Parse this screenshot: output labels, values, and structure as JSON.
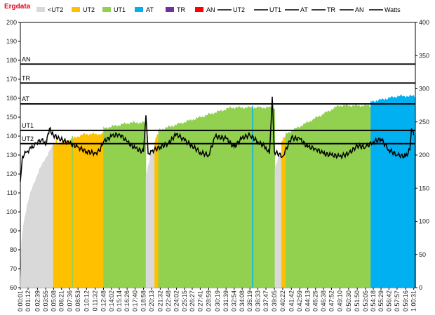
{
  "window": {
    "title": "Ergdata",
    "title_color": "#E8001C"
  },
  "chart_data": {
    "type": "area",
    "title": "Ergdata",
    "legend": {
      "placement": "top",
      "entries": [
        {
          "label": "<UT2",
          "kind": "area",
          "color": "#D9D9D9"
        },
        {
          "label": "UT2",
          "kind": "area",
          "color": "#FFC000"
        },
        {
          "label": "UT1",
          "kind": "area",
          "color": "#92D050"
        },
        {
          "label": "AT",
          "kind": "area",
          "color": "#00B0F0"
        },
        {
          "label": "TR",
          "kind": "area",
          "color": "#7030A0"
        },
        {
          "label": "AN",
          "kind": "area",
          "color": "#FF0000"
        },
        {
          "label": "UT2",
          "kind": "line",
          "color": "#000000"
        },
        {
          "label": "UT1",
          "kind": "line",
          "color": "#000000"
        },
        {
          "label": "AT",
          "kind": "line",
          "color": "#000000"
        },
        {
          "label": "TR",
          "kind": "line",
          "color": "#000000"
        },
        {
          "label": "AN",
          "kind": "line",
          "color": "#000000"
        },
        {
          "label": "Watts",
          "kind": "line",
          "color": "#000000"
        }
      ]
    },
    "y_left": {
      "range": [
        60,
        200
      ],
      "ticks": [
        60,
        70,
        80,
        90,
        100,
        110,
        120,
        130,
        140,
        150,
        160,
        170,
        180,
        190,
        200
      ]
    },
    "y_right": {
      "range": [
        0,
        400
      ],
      "ticks": [
        0,
        50,
        100,
        150,
        200,
        250,
        300,
        350,
        400
      ]
    },
    "grid": false,
    "x_tick_labels": [
      "0:00:01",
      "0:01:12",
      "0:02:39",
      "0:03:55",
      "0:05:08",
      "0:06:21",
      "0:07:36",
      "0:08:53",
      "0:10:12",
      "0:11:32",
      "0:12:48",
      "0:14:02",
      "0:15:14",
      "0:16:26",
      "0:17:40",
      "0:18:58",
      "0:20:13",
      "0:21:32",
      "0:22:48",
      "0:24:02",
      "0:25:15",
      "0:26:27",
      "0:27:41",
      "0:28:59",
      "0:30:19",
      "0:31:39",
      "0:32:54",
      "0:34:08",
      "0:35:19",
      "0:36:33",
      "0:37:47",
      "0:39:05",
      "0:40:22",
      "0:41:42",
      "0:42:59",
      "0:44:13",
      "0:45:25",
      "0:46:38",
      "0:47:52",
      "0:49:10",
      "0:50:30",
      "0:51:50",
      "0:53:05",
      "0:54:18",
      "0:55:29",
      "0:56:42",
      "0:57:57",
      "0:59:16",
      "1:00:31"
    ],
    "zone_lines": [
      {
        "label": "AN",
        "hr": 178
      },
      {
        "label": "TR",
        "hr": 168
      },
      {
        "label": "AT",
        "hr": 157
      },
      {
        "label": "UT1",
        "hr": 143
      },
      {
        "label": "UT2",
        "hr": 136
      }
    ],
    "zone_segments": [
      {
        "zone": "<UT2",
        "start": "0:00:01",
        "end": "0:05:05",
        "hr_start": 60,
        "hr_end": 135
      },
      {
        "zone": "UT2",
        "start": "0:05:05",
        "end": "0:12:48",
        "hr_start": 135,
        "hr_end": 141
      },
      {
        "zone": "UT1",
        "start": "0:12:48",
        "end": "0:19:20",
        "hr_start": 144,
        "hr_end": 147
      },
      {
        "zone": "<UT2",
        "start": "0:19:20",
        "end": "0:20:40",
        "hr_start": 118,
        "hr_end": 132
      },
      {
        "zone": "UT2",
        "start": "0:20:40",
        "end": "0:21:15",
        "hr_start": 136,
        "hr_end": 141
      },
      {
        "zone": "UT1",
        "start": "0:21:15",
        "end": "0:39:10",
        "hr_start": 143,
        "hr_end": 155
      },
      {
        "zone": "<UT2",
        "start": "0:39:10",
        "end": "0:40:10",
        "hr_start": 122,
        "hr_end": 130
      },
      {
        "zone": "UT2",
        "start": "0:40:10",
        "end": "0:40:50",
        "hr_start": 136,
        "hr_end": 140
      },
      {
        "zone": "UT1",
        "start": "0:40:50",
        "end": "0:53:55",
        "hr_start": 141,
        "hr_end": 156
      },
      {
        "zone": "AT",
        "start": "0:53:55",
        "end": "1:00:40",
        "hr_start": 158,
        "hr_end": 161
      }
    ],
    "watts_series": {
      "name": "Watts",
      "axis": "right",
      "points": [
        [
          "0:00:01",
          160
        ],
        [
          "0:00:20",
          198
        ],
        [
          "0:01:00",
          205
        ],
        [
          "0:01:40",
          210
        ],
        [
          "0:02:30",
          218
        ],
        [
          "0:03:20",
          224
        ],
        [
          "0:03:55",
          215
        ],
        [
          "0:04:30",
          240
        ],
        [
          "0:05:05",
          230
        ],
        [
          "0:06:00",
          225
        ],
        [
          "0:07:30",
          218
        ],
        [
          "0:08:53",
          212
        ],
        [
          "0:10:12",
          205
        ],
        [
          "0:11:32",
          203
        ],
        [
          "0:12:10",
          206
        ],
        [
          "0:12:48",
          220
        ],
        [
          "0:14:02",
          228
        ],
        [
          "0:15:14",
          232
        ],
        [
          "0:16:26",
          220
        ],
        [
          "0:17:40",
          210
        ],
        [
          "0:18:58",
          205
        ],
        [
          "0:19:20",
          260
        ],
        [
          "0:19:40",
          202
        ],
        [
          "0:20:13",
          206
        ],
        [
          "0:21:32",
          212
        ],
        [
          "0:22:48",
          218
        ],
        [
          "0:24:02",
          232
        ],
        [
          "0:25:15",
          222
        ],
        [
          "0:26:27",
          214
        ],
        [
          "0:27:41",
          204
        ],
        [
          "0:28:59",
          200
        ],
        [
          "0:30:00",
          228
        ],
        [
          "0:31:39",
          225
        ],
        [
          "0:32:54",
          212
        ],
        [
          "0:34:08",
          226
        ],
        [
          "0:35:19",
          230
        ],
        [
          "0:36:33",
          220
        ],
        [
          "0:37:47",
          212
        ],
        [
          "0:38:20",
          202
        ],
        [
          "0:38:45",
          288
        ],
        [
          "0:39:05",
          205
        ],
        [
          "0:40:22",
          198
        ],
        [
          "0:41:42",
          226
        ],
        [
          "0:42:59",
          224
        ],
        [
          "0:44:13",
          212
        ],
        [
          "0:45:25",
          210
        ],
        [
          "0:46:38",
          202
        ],
        [
          "0:47:52",
          200
        ],
        [
          "0:49:10",
          198
        ],
        [
          "0:50:30",
          202
        ],
        [
          "0:51:50",
          214
        ],
        [
          "0:53:05",
          212
        ],
        [
          "0:54:18",
          220
        ],
        [
          "0:55:29",
          224
        ],
        [
          "0:56:42",
          208
        ],
        [
          "0:57:57",
          200
        ],
        [
          "0:59:16",
          198
        ],
        [
          "0:59:55",
          208
        ],
        [
          "1:00:10",
          240
        ],
        [
          "1:00:31",
          230
        ]
      ]
    },
    "hr_axis": "left"
  }
}
